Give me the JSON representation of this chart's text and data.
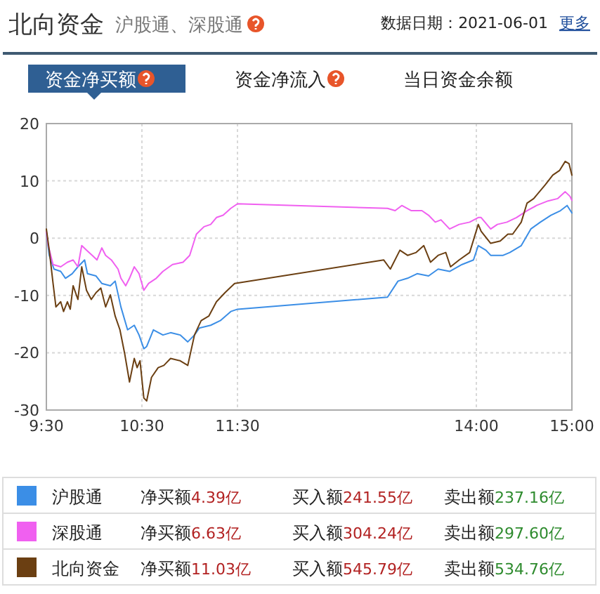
{
  "chart_data": {
    "type": "line",
    "title": "北向资金",
    "subtitle": "沪股通、深股通",
    "annotations": [
      "数据日期：2021-06-01",
      "更多",
      "资金净买额",
      "资金净流入",
      "当日资金余额",
      "净买额4.39亿",
      "买入额241.55亿",
      "卖出额237.16亿",
      "净买额6.63亿",
      "买入额304.24亿",
      "卖出额297.60亿",
      "净买额11.03亿",
      "买入额545.79亿",
      "卖出额534.76亿"
    ],
    "xlim": [
      9.5,
      15
    ],
    "xticks": [
      {
        "value": 9.5,
        "label": "9:30"
      },
      {
        "value": 10.5,
        "label": "10:30"
      },
      {
        "value": 11.5,
        "label": "11:30"
      },
      {
        "value": 14,
        "label": "14:00"
      },
      {
        "value": 15,
        "label": "15:00"
      }
    ],
    "ylim": [
      -30,
      20
    ],
    "yticks": [
      20,
      10,
      0,
      -10,
      -20,
      -30
    ],
    "grid": true,
    "legend": "bottom",
    "line_style": "solid",
    "marker": "none",
    "series": [
      {
        "name": "沪股通",
        "color": "#3b8ee6",
        "x": [
          9.5,
          9.53,
          9.58,
          9.65,
          9.7,
          9.77,
          9.83,
          9.9,
          9.93,
          10.02,
          10.08,
          10.17,
          10.22,
          10.28,
          10.35,
          10.42,
          10.47,
          10.52,
          10.55,
          10.62,
          10.72,
          10.8,
          10.9,
          10.98,
          11.05,
          11.1,
          11.22,
          11.32,
          11.43,
          11.5,
          13.07,
          13.18,
          13.28,
          13.38,
          13.5,
          13.6,
          13.72,
          13.85,
          13.97,
          14.02,
          14.1,
          14.15,
          14.28,
          14.35,
          14.47,
          14.57,
          14.67,
          14.78,
          14.88,
          14.95,
          15
        ],
        "values": [
          1.1,
          -3,
          -5.4,
          -5.8,
          -7,
          -6.2,
          -5,
          -3.8,
          -6.2,
          -6.6,
          -7.9,
          -8.3,
          -7.5,
          -12,
          -16,
          -15.2,
          -16.9,
          -19.3,
          -18.9,
          -16,
          -16.9,
          -16.5,
          -16.9,
          -18.1,
          -16.9,
          -15.7,
          -15.2,
          -14.4,
          -12.8,
          -12.4,
          -10.3,
          -7.5,
          -7,
          -6.2,
          -6.6,
          -5.4,
          -5.8,
          -4.6,
          -3.8,
          -1.3,
          -2.1,
          -3,
          -3,
          -2.5,
          -1.3,
          1.6,
          2.8,
          4,
          4.8,
          5.7,
          4.4
        ]
      },
      {
        "name": "深股通",
        "color": "#f060f0",
        "x": [
          9.5,
          9.52,
          9.57,
          9.65,
          9.72,
          9.78,
          9.83,
          9.87,
          9.92,
          9.98,
          10.03,
          10.08,
          10.12,
          10.18,
          10.25,
          10.28,
          10.33,
          10.37,
          10.42,
          10.47,
          10.52,
          10.57,
          10.65,
          10.72,
          10.82,
          10.93,
          11,
          11.07,
          11.15,
          11.22,
          11.28,
          11.35,
          11.43,
          11.5,
          13.07,
          13.15,
          13.22,
          13.32,
          13.43,
          13.5,
          13.57,
          13.63,
          13.72,
          13.82,
          13.93,
          14.02,
          14.05,
          14.15,
          14.22,
          14.32,
          14.42,
          14.53,
          14.63,
          14.75,
          14.85,
          14.93,
          14.98,
          15
        ],
        "values": [
          1.1,
          -1.3,
          -4.6,
          -5,
          -4.2,
          -3.8,
          -5,
          -1.3,
          -2.1,
          -3,
          -3.8,
          -1.7,
          -3,
          -3.8,
          -5.4,
          -7,
          -8.3,
          -7,
          -5,
          -6.2,
          -9.1,
          -7.9,
          -7,
          -5.8,
          -4.6,
          -4.2,
          -3,
          0.7,
          2,
          2.4,
          3.6,
          4,
          5.2,
          6,
          5.2,
          4.8,
          5.7,
          4.8,
          4.8,
          4,
          2.8,
          3.2,
          1.6,
          2.4,
          2.8,
          3.6,
          3.6,
          1.6,
          2.4,
          2.8,
          3.6,
          4.8,
          5.7,
          6.5,
          6.9,
          8.1,
          7.3,
          6.6
        ]
      },
      {
        "name": "北向资金",
        "color": "#6b3f12",
        "x": [
          9.5,
          9.53,
          9.57,
          9.6,
          9.65,
          9.68,
          9.72,
          9.75,
          9.78,
          9.83,
          9.87,
          9.92,
          9.97,
          10.02,
          10.07,
          10.12,
          10.17,
          10.22,
          10.27,
          10.32,
          10.37,
          10.42,
          10.45,
          10.48,
          10.52,
          10.55,
          10.6,
          10.67,
          10.73,
          10.8,
          10.9,
          10.98,
          11.05,
          11.12,
          11.2,
          11.28,
          11.37,
          11.47,
          13.03,
          13.1,
          13.2,
          13.28,
          13.37,
          13.45,
          13.52,
          13.6,
          13.68,
          13.73,
          13.82,
          13.93,
          14.02,
          14.05,
          14.15,
          14.25,
          14.33,
          14.38,
          14.47,
          14.53,
          14.6,
          14.72,
          14.8,
          14.87,
          14.93,
          14.97,
          15
        ],
        "values": [
          1.6,
          -2.1,
          -7.9,
          -12,
          -11.1,
          -12.8,
          -11.1,
          -12.4,
          -8.3,
          -10.7,
          -5,
          -9.1,
          -10.7,
          -9.5,
          -8.7,
          -12,
          -9.9,
          -13.6,
          -16,
          -20.2,
          -25.1,
          -21,
          -22.6,
          -21.4,
          -27.9,
          -28.4,
          -24.3,
          -22.6,
          -22.2,
          -21,
          -21.4,
          -22.2,
          -16.9,
          -14.4,
          -13.6,
          -11.1,
          -9.5,
          -7.9,
          -3.8,
          -5.4,
          -2.1,
          -3,
          -2.5,
          -1.3,
          -4.2,
          -3,
          -2.5,
          -5,
          -3.8,
          -2.5,
          2.4,
          1.2,
          -0.9,
          -0.5,
          0.7,
          0.7,
          2.8,
          6.1,
          6.9,
          9.3,
          11,
          11.8,
          13.4,
          13,
          11
        ]
      }
    ]
  }
}
